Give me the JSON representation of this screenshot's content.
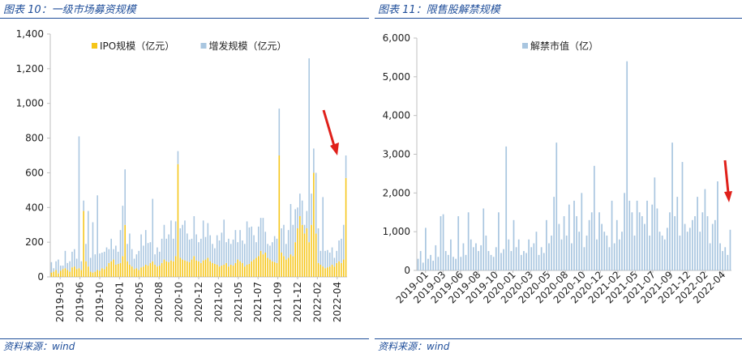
{
  "colors": {
    "title": "#1f4e9a",
    "ipo": "#f5c518",
    "additional": "#a9c6e0",
    "unlock": "#a9c6e0",
    "arrow": "#e0201a",
    "axis": "#bfbfbf"
  },
  "left": {
    "title": "图表 10：一级市场募资规模",
    "source": "资料来源：wind"
  },
  "right": {
    "title": "图表 11：限售股解禁规模",
    "source": "资料来源：wind"
  },
  "chart_data": [
    {
      "type": "bar",
      "stacked": true,
      "frequency": "weekly",
      "ylim": [
        0,
        1400
      ],
      "yticks": [
        "0",
        "200",
        "400",
        "600",
        "800",
        "1,000",
        "1,200",
        "1,400"
      ],
      "ytick_values": [
        0,
        200,
        400,
        600,
        800,
        1000,
        1200,
        1400
      ],
      "xticks": [
        "2019-03",
        "2019-06",
        "2019-10",
        "2020-01",
        "2020-05",
        "2020-08",
        "2020-10",
        "2020-12",
        "2021-02",
        "2021-05",
        "2021-07",
        "2021-09",
        "2021-12",
        "2022-02",
        "2022-04"
      ],
      "legend": "top-center",
      "grid": false,
      "series": [
        {
          "name": "IPO规模（亿元）",
          "color": "#f5c518",
          "values": [
            25,
            30,
            40,
            20,
            35,
            45,
            50,
            40,
            30,
            55,
            60,
            45,
            50,
            40,
            380,
            90,
            60,
            30,
            25,
            30,
            40,
            35,
            50,
            45,
            60,
            80,
            90,
            100,
            70,
            75,
            80,
            120,
            300,
            90,
            70,
            60,
            45,
            50,
            40,
            55,
            60,
            70,
            65,
            80,
            90,
            70,
            60,
            65,
            80,
            100,
            90,
            85,
            95,
            90,
            120,
            650,
            110,
            100,
            95,
            90,
            85,
            100,
            120,
            95,
            90,
            80,
            95,
            100,
            110,
            90,
            80,
            75,
            70,
            60,
            65,
            70,
            80,
            60,
            70,
            65,
            80,
            100,
            90,
            80,
            60,
            70,
            75,
            90,
            100,
            110,
            120,
            150,
            130,
            140,
            110,
            100,
            90,
            85,
            80,
            700,
            140,
            120,
            100,
            110,
            130,
            120,
            200,
            280,
            350,
            300,
            250,
            280,
            200,
            300,
            600,
            250,
            80,
            70,
            60,
            50,
            55,
            60,
            70,
            60,
            80,
            90,
            80,
            100,
            570
          ]
        },
        {
          "name": "增发规模（亿元）",
          "color": "#a9c6e0",
          "values": [
            60,
            20,
            50,
            80,
            30,
            20,
            100,
            40,
            60,
            90,
            100,
            60,
            760,
            50,
            60,
            100,
            320,
            80,
            290,
            100,
            430,
            100,
            90,
            100,
            110,
            80,
            130,
            60,
            110,
            70,
            190,
            290,
            320,
            100,
            180,
            100,
            60,
            80,
            110,
            190,
            120,
            200,
            130,
            120,
            360,
            60,
            110,
            80,
            140,
            200,
            130,
            160,
            230,
            130,
            200,
            75,
            170,
            200,
            230,
            160,
            130,
            120,
            230,
            150,
            110,
            140,
            230,
            130,
            200,
            150,
            110,
            90,
            170,
            150,
            190,
            260,
            120,
            160,
            120,
            150,
            190,
            100,
            180,
            130,
            130,
            250,
            210,
            200,
            140,
            90,
            170,
            190,
            210,
            120,
            80,
            80,
            110,
            150,
            140,
            270,
            140,
            180,
            90,
            160,
            290,
            180,
            190,
            120,
            130,
            140,
            50,
            100,
            1060,
            180,
            140,
            350,
            200,
            80,
            400,
            100,
            100,
            80,
            100,
            50,
            70,
            120,
            140,
            200,
            130
          ]
        }
      ]
    },
    {
      "type": "bar",
      "frequency": "weekly",
      "ylim": [
        0,
        6000
      ],
      "yticks": [
        "0",
        "1,000",
        "2,000",
        "3,000",
        "4,000",
        "5,000",
        "6,000"
      ],
      "ytick_values": [
        0,
        1000,
        2000,
        3000,
        4000,
        5000,
        6000
      ],
      "xticks": [
        "2019-01",
        "2019-03",
        "2019-06",
        "2019-08",
        "2019-10",
        "2020-01",
        "2020-03",
        "2020-05",
        "2020-08",
        "2020-10",
        "2020-12",
        "2021-02",
        "2021-05",
        "2021-07",
        "2021-09",
        "2021-12",
        "2022-02",
        "2022-04"
      ],
      "legend": "top-center",
      "grid": false,
      "series": [
        {
          "name": "解禁市值（亿）",
          "color": "#a9c6e0",
          "values": [
            300,
            500,
            200,
            1100,
            300,
            400,
            250,
            650,
            350,
            1400,
            1450,
            500,
            400,
            800,
            350,
            300,
            1400,
            350,
            700,
            400,
            1500,
            800,
            600,
            700,
            500,
            650,
            1600,
            900,
            500,
            400,
            350,
            600,
            1500,
            450,
            550,
            3200,
            800,
            500,
            1300,
            600,
            800,
            400,
            500,
            450,
            800,
            600,
            700,
            1000,
            400,
            600,
            450,
            1300,
            700,
            900,
            1900,
            3300,
            1200,
            800,
            1400,
            900,
            1700,
            700,
            1800,
            1400,
            1000,
            2000,
            600,
            900,
            1300,
            1500,
            2700,
            800,
            1500,
            1200,
            1000,
            900,
            600,
            1800,
            700,
            1300,
            800,
            1000,
            2000,
            5400,
            1800,
            1500,
            900,
            1800,
            1500,
            1400,
            1200,
            1800,
            900,
            1700,
            2400,
            1600,
            1000,
            900,
            800,
            1100,
            1500,
            3300,
            1400,
            1900,
            900,
            2800,
            1200,
            1000,
            1100,
            1300,
            1400,
            1900,
            1000,
            1500,
            2100,
            1400,
            700,
            1200,
            1300,
            2300,
            700,
            500,
            600,
            400,
            1050
          ]
        }
      ]
    }
  ]
}
